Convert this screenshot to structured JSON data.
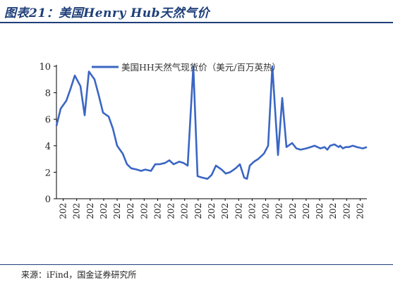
{
  "header": {
    "title": "图表21：美国Henry Hub天然气价"
  },
  "footer": {
    "source": "来源：iFind，国金证券研究所"
  },
  "colors": {
    "series": "#3a66c4",
    "axis": "#000000",
    "title": "#1f3f7a"
  },
  "chart_data": {
    "type": "line",
    "title": "",
    "xlabel": "",
    "ylabel": "",
    "ylim": [
      0,
      10
    ],
    "y_ticks": [
      0,
      2,
      4,
      6,
      8,
      10
    ],
    "x_tick_labels": [
      "202",
      "202",
      "202",
      "202",
      "202",
      "202",
      "202",
      "202",
      "202",
      "202",
      "202",
      "202",
      "202",
      "202",
      "202",
      "202",
      "202",
      "202",
      "202",
      "202",
      "202",
      "202",
      "202"
    ],
    "grid": false,
    "legend": "top-center",
    "series": [
      {
        "name": "美国HH天然气现货价（美元/百万英热）",
        "x": [
          0,
          0.3,
          0.7,
          1.0,
          1.3,
          1.7,
          2.0,
          2.3,
          2.7,
          3.0,
          3.3,
          3.7,
          4.0,
          4.3,
          4.7,
          5.0,
          5.3,
          5.7,
          6.0,
          6.3,
          6.7,
          7.0,
          7.3,
          7.7,
          8.0,
          8.3,
          8.7,
          9.0,
          9.3,
          9.7,
          10.0,
          10.3,
          10.7,
          11.0,
          11.3,
          11.7,
          12.0,
          12.3,
          12.7,
          13.0,
          13.3,
          13.5,
          13.7,
          14.0,
          14.3,
          14.7,
          15.0,
          15.3,
          15.7,
          16.0,
          16.3,
          16.7,
          17.0,
          17.3,
          17.7,
          18.0,
          18.3,
          18.7,
          19.0,
          19.2,
          19.4,
          19.7,
          20.0,
          20.1,
          20.3,
          20.5,
          20.7,
          21.0,
          21.3,
          21.7,
          22.0
        ],
        "values": [
          5.5,
          6.8,
          7.4,
          8.3,
          9.3,
          8.5,
          6.3,
          9.6,
          9.0,
          7.8,
          6.5,
          6.2,
          5.3,
          4.0,
          3.4,
          2.6,
          2.3,
          2.2,
          2.1,
          2.2,
          2.1,
          2.6,
          2.6,
          2.7,
          2.9,
          2.6,
          2.8,
          2.7,
          2.5,
          10.0,
          1.7,
          1.6,
          1.5,
          1.8,
          2.5,
          2.2,
          1.9,
          2.0,
          2.3,
          2.6,
          1.6,
          1.5,
          2.5,
          2.8,
          3.0,
          3.4,
          4.0,
          10.0,
          3.3,
          7.6,
          3.9,
          4.2,
          3.8,
          3.7,
          3.8,
          3.9,
          4.0,
          3.8,
          3.9,
          3.7,
          4.0,
          4.1,
          3.9,
          4.0,
          3.8,
          3.9,
          3.9,
          4.0,
          3.9,
          3.8,
          3.9
        ]
      }
    ]
  }
}
